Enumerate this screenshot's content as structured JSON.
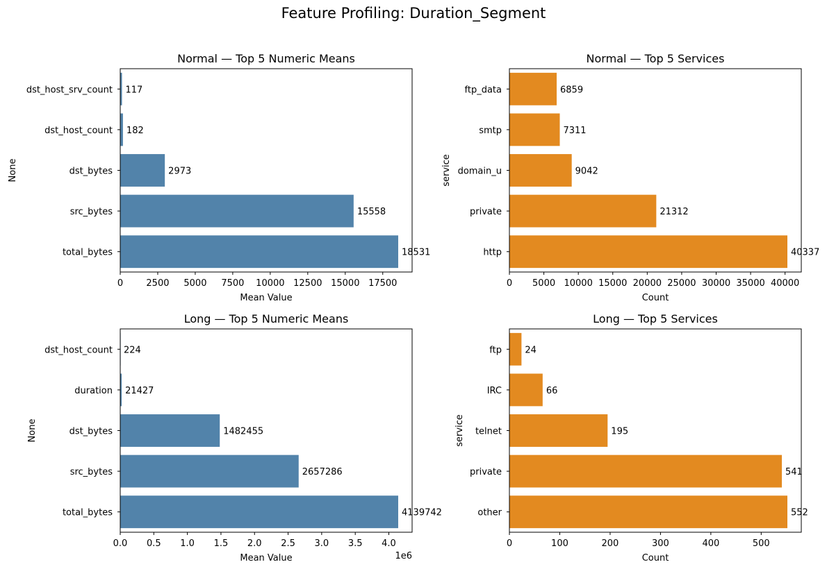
{
  "figure": {
    "suptitle": "Feature Profiling: Duration_Segment"
  },
  "colors": {
    "numeric_bar": "#5283aa",
    "service_bar": "#e38a20",
    "axis": "#000000"
  },
  "chart_data": [
    {
      "type": "bar",
      "orientation": "horizontal",
      "title": "Normal — Top 5 Numeric Means",
      "xlabel": "Mean Value",
      "ylabel": "None",
      "categories": [
        "dst_host_srv_count",
        "dst_host_count",
        "dst_bytes",
        "src_bytes",
        "total_bytes"
      ],
      "values": [
        117,
        182,
        2973,
        15558,
        18531
      ],
      "data_labels": [
        "117",
        "182",
        "2973",
        "15558",
        "18531"
      ],
      "xticks": [
        0,
        2500,
        5000,
        7500,
        10000,
        12500,
        15000,
        17500
      ],
      "xtick_labels": [
        "0",
        "2500",
        "5000",
        "7500",
        "10000",
        "12500",
        "15000",
        "17500"
      ],
      "xlim": [
        0,
        19457
      ],
      "offset_text": "",
      "color_key": "numeric_bar"
    },
    {
      "type": "bar",
      "orientation": "horizontal",
      "title": "Normal — Top 5 Services",
      "xlabel": "Count",
      "ylabel": "service",
      "categories": [
        "ftp_data",
        "smtp",
        "domain_u",
        "private",
        "http"
      ],
      "values": [
        6859,
        7311,
        9042,
        21312,
        40337
      ],
      "data_labels": [
        "6859",
        "7311",
        "9042",
        "21312",
        "40337"
      ],
      "xticks": [
        0,
        5000,
        10000,
        15000,
        20000,
        25000,
        30000,
        35000,
        40000
      ],
      "xtick_labels": [
        "0",
        "5000",
        "10000",
        "15000",
        "20000",
        "25000",
        "30000",
        "35000",
        "40000"
      ],
      "xlim": [
        0,
        42354
      ],
      "offset_text": "",
      "color_key": "service_bar"
    },
    {
      "type": "bar",
      "orientation": "horizontal",
      "title": "Long — Top 5 Numeric Means",
      "xlabel": "Mean Value",
      "ylabel": "None",
      "categories": [
        "dst_host_count",
        "duration",
        "dst_bytes",
        "src_bytes",
        "total_bytes"
      ],
      "values": [
        224,
        21427,
        1482455,
        2657286,
        4139742
      ],
      "data_labels": [
        "224",
        "21427",
        "1482455",
        "2657286",
        "4139742"
      ],
      "xticks": [
        0,
        500000,
        1000000,
        1500000,
        2000000,
        2500000,
        3000000,
        3500000,
        4000000
      ],
      "xtick_labels": [
        "0.0",
        "0.5",
        "1.0",
        "1.5",
        "2.0",
        "2.5",
        "3.0",
        "3.5",
        "4.0"
      ],
      "xlim": [
        0,
        4346729
      ],
      "offset_text": "1e6",
      "color_key": "numeric_bar"
    },
    {
      "type": "bar",
      "orientation": "horizontal",
      "title": "Long — Top 5 Services",
      "xlabel": "Count",
      "ylabel": "service",
      "categories": [
        "ftp",
        "IRC",
        "telnet",
        "private",
        "other"
      ],
      "values": [
        24,
        66,
        195,
        541,
        552
      ],
      "data_labels": [
        "24",
        "66",
        "195",
        "541",
        "552"
      ],
      "xticks": [
        0,
        100,
        200,
        300,
        400,
        500
      ],
      "xtick_labels": [
        "0",
        "100",
        "200",
        "300",
        "400",
        "500"
      ],
      "xlim": [
        0,
        579.6
      ],
      "offset_text": "",
      "color_key": "service_bar"
    }
  ]
}
